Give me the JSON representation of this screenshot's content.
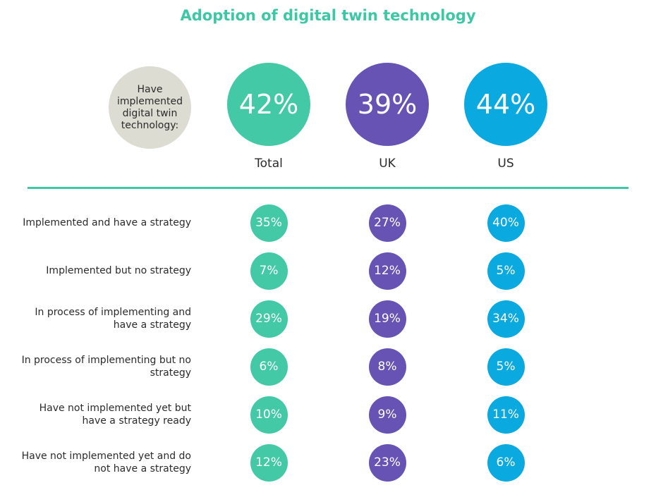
{
  "chart_data": {
    "type": "table",
    "title": "Adoption of digital twin technology",
    "headline_label": "Have implemented digital twin technology:",
    "columns": [
      {
        "name": "Total",
        "color": "#43c9a5",
        "headline": "42%"
      },
      {
        "name": "UK",
        "color": "#6653b3",
        "headline": "39%"
      },
      {
        "name": "US",
        "color": "#0aa9e0",
        "headline": "44%"
      }
    ],
    "rows": [
      {
        "label": "Implemented and have a strategy",
        "values": [
          "35%",
          "27%",
          "40%"
        ]
      },
      {
        "label": "Implemented but no strategy",
        "values": [
          "7%",
          "12%",
          "5%"
        ]
      },
      {
        "label": "In process of implementing and have a strategy",
        "values": [
          "29%",
          "19%",
          "34%"
        ]
      },
      {
        "label": "In process of implementing but no strategy",
        "values": [
          "6%",
          "8%",
          "5%"
        ]
      },
      {
        "label": "Have not implemented yet but have a strategy ready",
        "values": [
          "10%",
          "9%",
          "11%"
        ]
      },
      {
        "label": "Have not implemented yet and do not have a strategy",
        "values": [
          "12%",
          "23%",
          "6%"
        ]
      }
    ]
  }
}
